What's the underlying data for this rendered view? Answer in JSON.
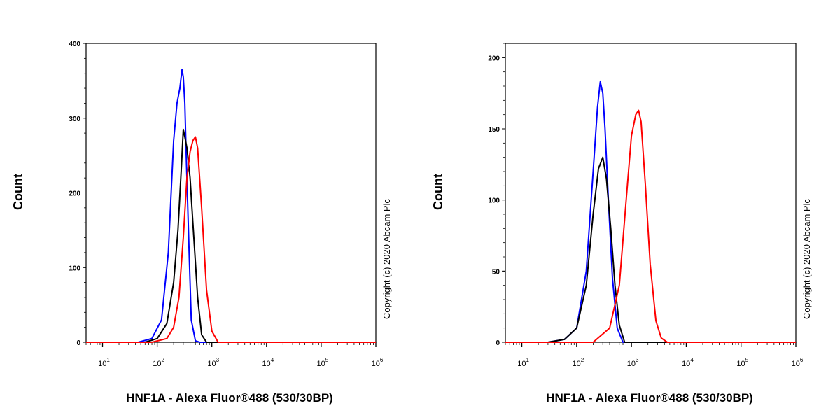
{
  "chart_data": [
    {
      "type": "line",
      "title": "",
      "xlabel": "HNF1A - Alexa Fluor®488 (530/30BP)",
      "ylabel": "Count",
      "x_scale": "log",
      "xlim": [
        5,
        1000000
      ],
      "ylim": [
        0,
        400
      ],
      "y_ticks": [
        0,
        100,
        200,
        300,
        400
      ],
      "x_ticks": [
        {
          "value": 10,
          "base": "10",
          "exp": "1"
        },
        {
          "value": 100,
          "base": "10",
          "exp": "2"
        },
        {
          "value": 1000,
          "base": "10",
          "exp": "3"
        },
        {
          "value": 10000,
          "base": "10",
          "exp": "4"
        },
        {
          "value": 100000,
          "base": "10",
          "exp": "5"
        },
        {
          "value": 1000000,
          "base": "10",
          "exp": "6"
        }
      ],
      "annotation": "Copyright (c) 2020 Abcam Plc",
      "grid": false,
      "series": [
        {
          "color": "#0000ff",
          "x": [
            5,
            45,
            80,
            120,
            160,
            200,
            230,
            260,
            285,
            300,
            320,
            340,
            380,
            420,
            500,
            600,
            1000000
          ],
          "y": [
            0,
            0,
            5,
            30,
            120,
            270,
            320,
            340,
            365,
            355,
            320,
            250,
            130,
            30,
            2,
            0,
            0
          ]
        },
        {
          "color": "#000000",
          "x": [
            5,
            60,
            100,
            150,
            200,
            240,
            280,
            300,
            320,
            350,
            400,
            450,
            550,
            650,
            800,
            1000000
          ],
          "y": [
            0,
            0,
            5,
            25,
            80,
            150,
            240,
            285,
            275,
            260,
            220,
            160,
            60,
            10,
            0,
            0
          ]
        },
        {
          "color": "#ff0000",
          "x": [
            5,
            80,
            150,
            200,
            250,
            300,
            350,
            400,
            450,
            500,
            550,
            650,
            800,
            1000,
            1300,
            1000000
          ],
          "y": [
            0,
            0,
            5,
            20,
            60,
            140,
            220,
            255,
            270,
            275,
            260,
            180,
            70,
            15,
            0,
            0
          ]
        }
      ]
    },
    {
      "type": "line",
      "title": "",
      "xlabel": "HNF1A - Alexa Fluor®488 (530/30BP)",
      "ylabel": "Count",
      "x_scale": "log",
      "xlim": [
        5,
        1000000
      ],
      "ylim": [
        0,
        210
      ],
      "y_ticks": [
        0,
        50,
        100,
        150,
        200
      ],
      "x_ticks": [
        {
          "value": 10,
          "base": "10",
          "exp": "1"
        },
        {
          "value": 100,
          "base": "10",
          "exp": "2"
        },
        {
          "value": 1000,
          "base": "10",
          "exp": "3"
        },
        {
          "value": 10000,
          "base": "10",
          "exp": "4"
        },
        {
          "value": 100000,
          "base": "10",
          "exp": "5"
        },
        {
          "value": 1000000,
          "base": "10",
          "exp": "6"
        }
      ],
      "annotation": "Copyright (c) 2020 Abcam Plc",
      "grid": false,
      "series": [
        {
          "color": "#0000ff",
          "x": [
            5,
            30,
            60,
            100,
            150,
            200,
            240,
            270,
            300,
            330,
            380,
            450,
            550,
            700,
            1000000
          ],
          "y": [
            0,
            0,
            2,
            10,
            50,
            120,
            165,
            183,
            175,
            150,
            100,
            45,
            10,
            0,
            0
          ]
        },
        {
          "color": "#000000",
          "x": [
            5,
            30,
            60,
            100,
            150,
            200,
            250,
            300,
            350,
            420,
            500,
            600,
            750,
            1000000
          ],
          "y": [
            0,
            0,
            2,
            10,
            40,
            90,
            122,
            130,
            115,
            80,
            40,
            12,
            0,
            0
          ]
        },
        {
          "color": "#ff0000",
          "x": [
            5,
            200,
            400,
            600,
            800,
            1000,
            1200,
            1350,
            1500,
            1800,
            2200,
            2800,
            3500,
            4500,
            1000000
          ],
          "y": [
            0,
            0,
            10,
            40,
            100,
            145,
            160,
            163,
            155,
            110,
            55,
            15,
            3,
            0,
            0
          ]
        }
      ]
    }
  ]
}
